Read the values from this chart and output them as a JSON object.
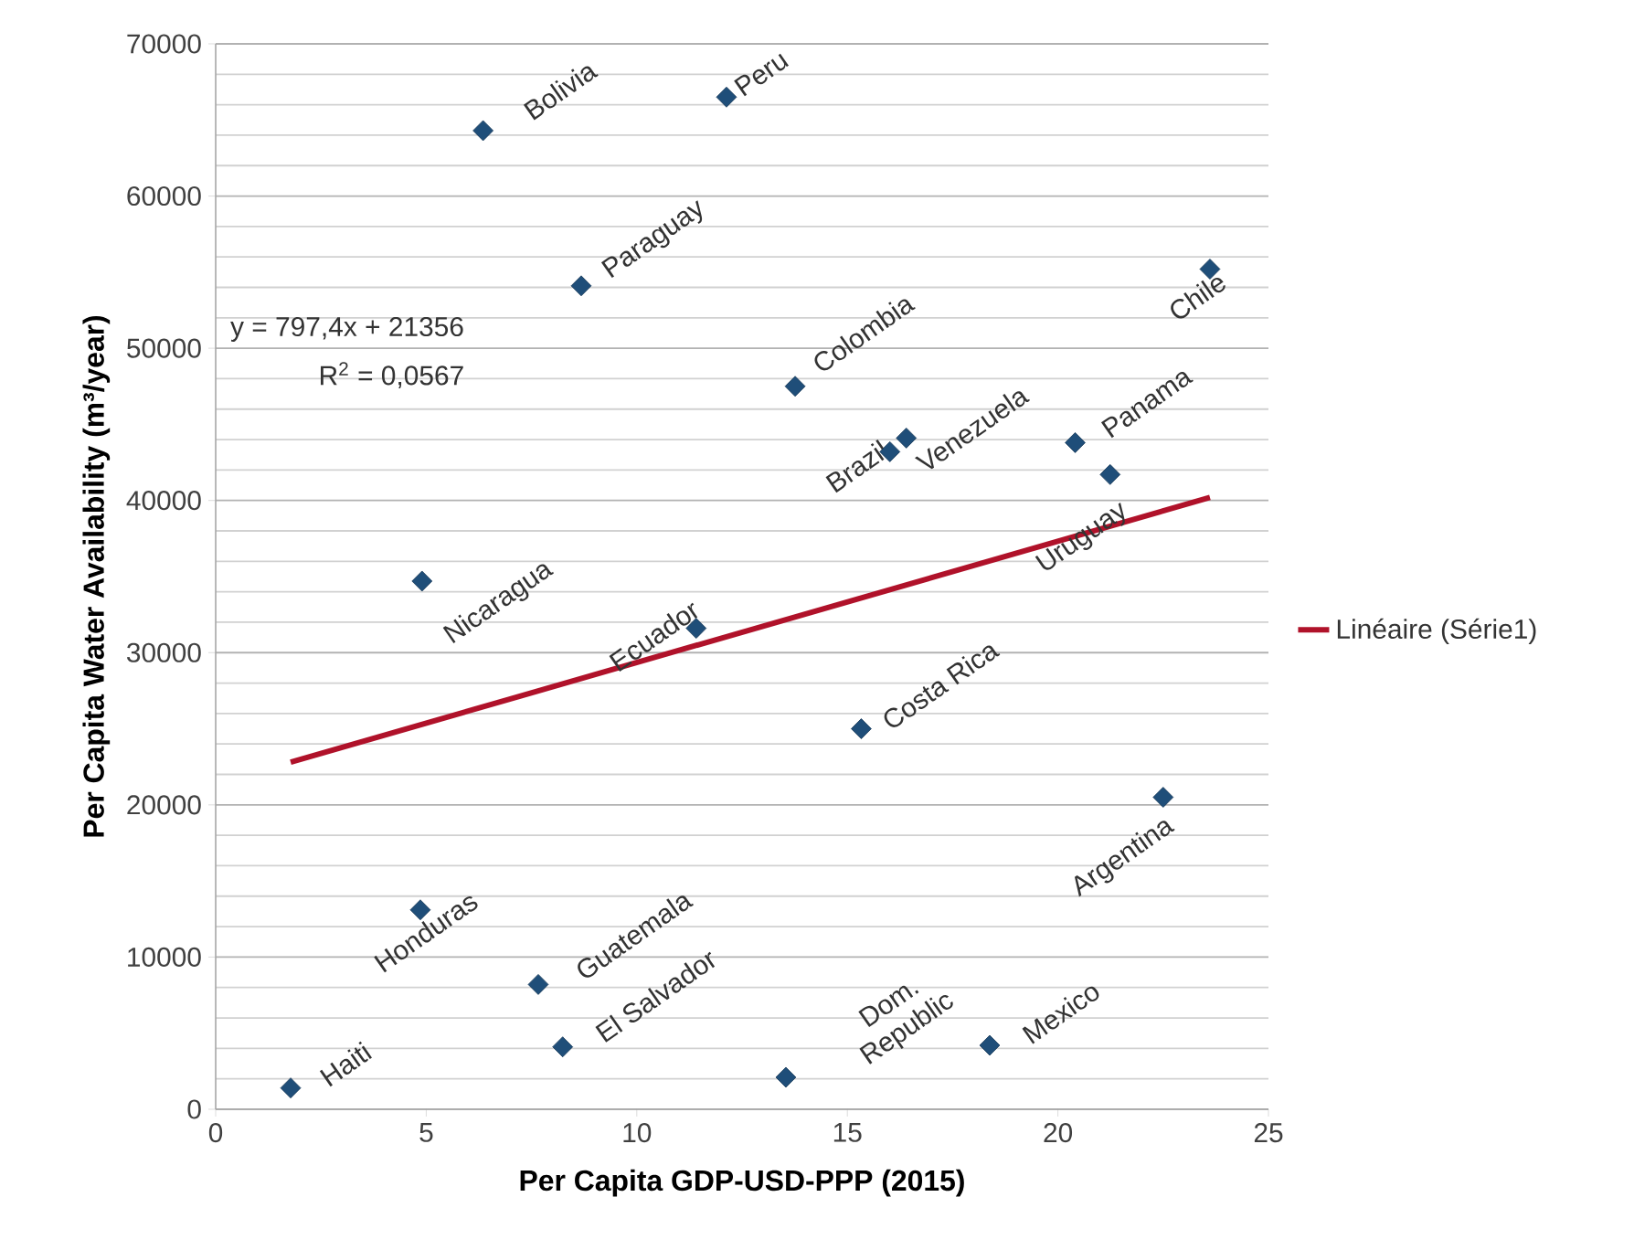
{
  "chart_data": {
    "type": "scatter",
    "xlabel": "Per Capita GDP-USD-PPP (2015)",
    "ylabel": "Per Capita Water Availability (m³/year)",
    "xlim": [
      0,
      25
    ],
    "xticks": [
      0,
      5,
      10,
      15,
      20,
      25
    ],
    "ylim": [
      0,
      70000
    ],
    "yticks": [
      0,
      10000,
      20000,
      30000,
      40000,
      50000,
      60000,
      70000
    ],
    "grid": "y",
    "legend": "right",
    "series": [
      {
        "color": "#1f4e79",
        "marker": "diamond",
        "x": [
          6.35,
          12.13,
          8.68,
          23.61,
          13.76,
          16.01,
          16.4,
          20.41,
          21.24,
          4.9,
          11.41,
          15.33,
          22.5,
          4.86,
          7.66,
          8.24,
          1.78,
          13.54,
          18.38
        ],
        "values": [
          64300,
          66500,
          54100,
          55200,
          47500,
          43200,
          44100,
          43800,
          41700,
          34700,
          31600,
          25000,
          20500,
          13100,
          8200,
          4100,
          1400,
          2100,
          4200
        ]
      },
      {
        "type": "line",
        "name": "Linéaire (Série1)",
        "color": "#b0122a",
        "marker": "none",
        "x": [
          1.78,
          23.61
        ],
        "values": [
          22800,
          40200
        ]
      }
    ],
    "annotations": [
      {
        "text": "Bolivia",
        "x": 6.35,
        "y": 64300
      },
      {
        "text": "Peru",
        "x": 12.13,
        "y": 66500
      },
      {
        "text": "Paraguay",
        "x": 8.68,
        "y": 54100
      },
      {
        "text": "Chile",
        "x": 23.61,
        "y": 55200
      },
      {
        "text": "Colombia",
        "x": 13.76,
        "y": 47500
      },
      {
        "text": "Brazil",
        "x": 16.01,
        "y": 43200
      },
      {
        "text": "Venezuela",
        "x": 16.4,
        "y": 44100
      },
      {
        "text": "Panama",
        "x": 20.41,
        "y": 43800
      },
      {
        "text": "Uruguay",
        "x": 21.24,
        "y": 41700
      },
      {
        "text": "Nicaragua",
        "x": 4.9,
        "y": 34700
      },
      {
        "text": "Ecuador",
        "x": 11.41,
        "y": 31600
      },
      {
        "text": "Costa Rica",
        "x": 15.33,
        "y": 25000
      },
      {
        "text": "Argentina",
        "x": 22.5,
        "y": 20500
      },
      {
        "text": "Honduras",
        "x": 4.86,
        "y": 13100
      },
      {
        "text": "Guatemala",
        "x": 7.66,
        "y": 8200
      },
      {
        "text": "El Salvador",
        "x": 8.24,
        "y": 4100
      },
      {
        "text": "Haiti",
        "x": 1.78,
        "y": 1400
      },
      {
        "text": "Dom. Republic",
        "x": 13.54,
        "y": 2100
      },
      {
        "text": "Mexico",
        "x": 18.38,
        "y": 4200
      },
      "y = 797,4x + 21356",
      "R$^{2}$ = 0,0567"
    ]
  }
}
